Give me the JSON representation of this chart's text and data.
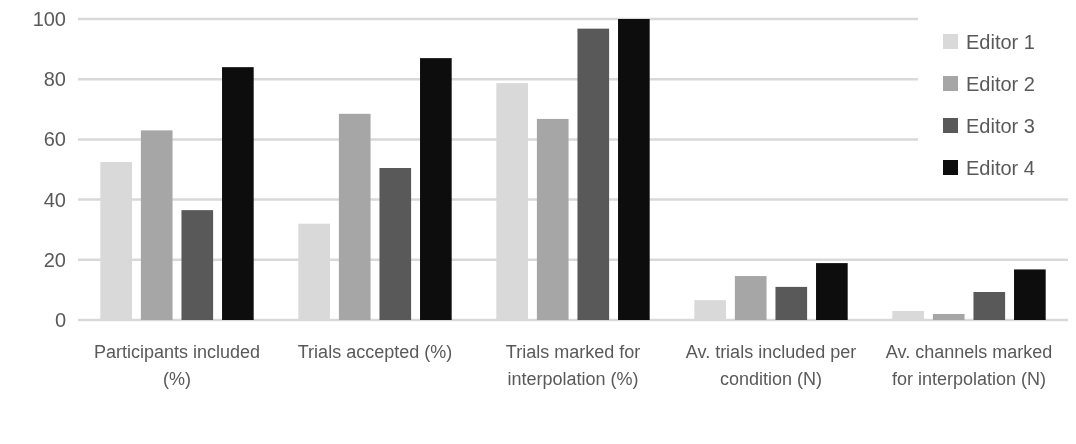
{
  "chart_data": {
    "type": "bar",
    "categories": [
      "Participants included (%)",
      "Trials accepted (%)",
      "Trials marked for interpolation (%)",
      "Av. trials included per condition (N)",
      "Av. channels marked for interpolation (N)"
    ],
    "series": [
      {
        "name": "Editor 1",
        "color": "#d9d9d9",
        "values": [
          52.5,
          32,
          78.7,
          6.6,
          3
        ]
      },
      {
        "name": "Editor 2",
        "color": "#a6a6a6",
        "values": [
          63,
          68.5,
          66.8,
          14.6,
          2
        ]
      },
      {
        "name": "Editor 3",
        "color": "#595959",
        "values": [
          36.5,
          50.5,
          96.8,
          11,
          9.3
        ]
      },
      {
        "name": "Editor 4",
        "color": "#0d0d0d",
        "values": [
          84,
          87,
          100,
          18.9,
          16.8
        ]
      }
    ],
    "ylim": [
      0,
      100
    ],
    "yticks": [
      0,
      20,
      40,
      60,
      80,
      100
    ],
    "grid": "y",
    "legend": "top right"
  }
}
